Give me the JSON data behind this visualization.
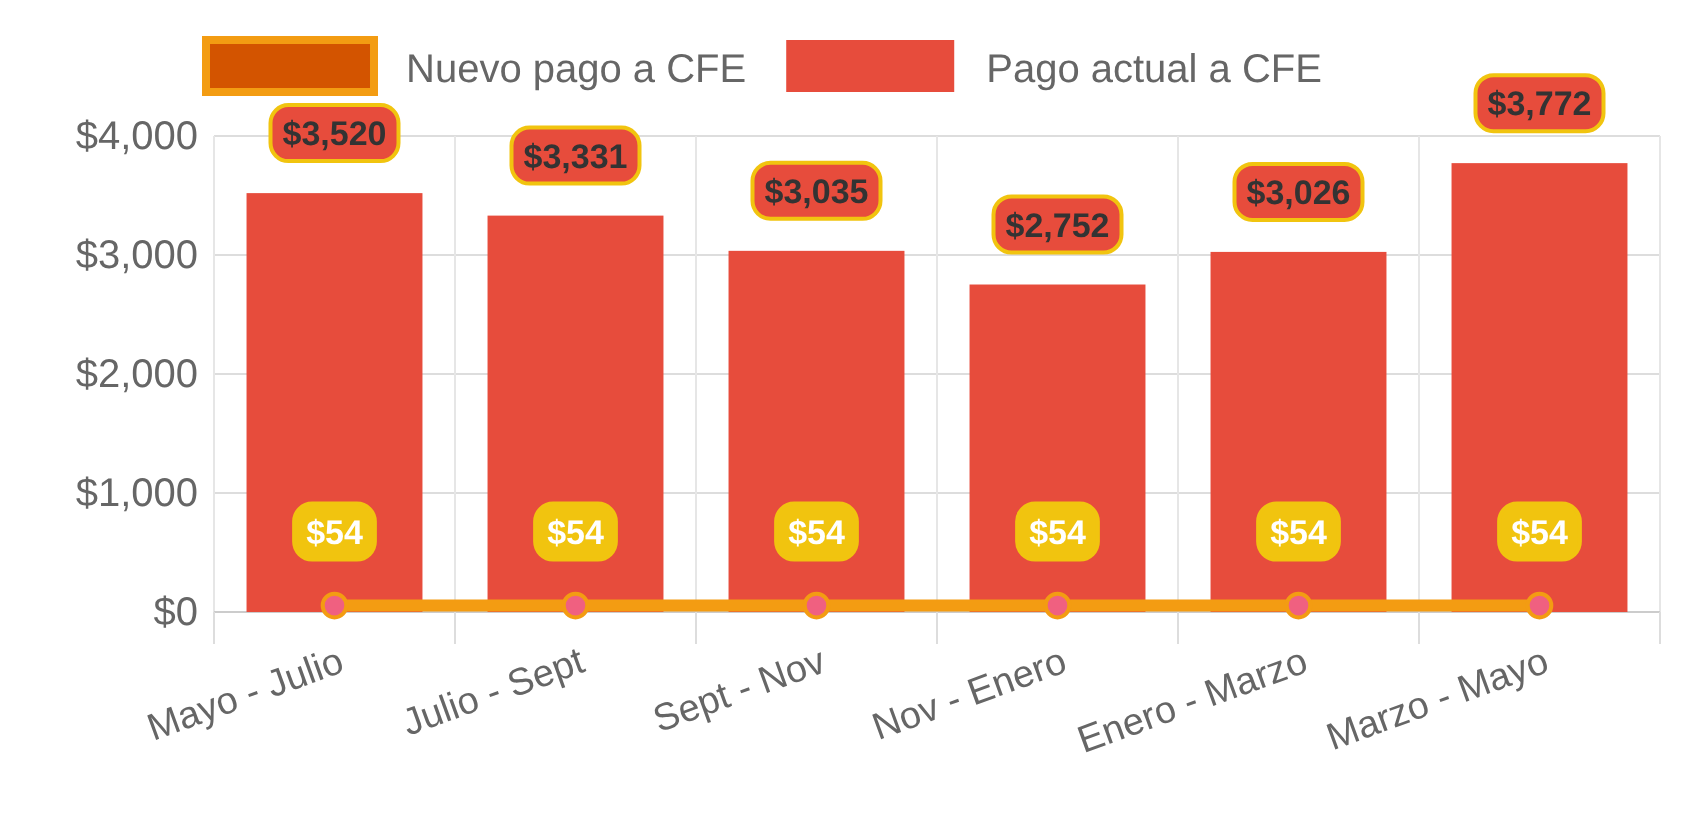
{
  "chart_data": {
    "type": "bar",
    "categories": [
      "Mayo - Julio",
      "Julio - Sept",
      "Sept - Nov",
      "Nov - Enero",
      "Enero - Marzo",
      "Marzo - Mayo"
    ],
    "series": [
      {
        "name": "Nuevo pago a CFE",
        "type": "line",
        "color": "#f39c12",
        "values": [
          54,
          54,
          54,
          54,
          54,
          54
        ],
        "value_labels": [
          "$54",
          "$54",
          "$54",
          "$54",
          "$54",
          "$54"
        ]
      },
      {
        "name": "Pago actual a CFE",
        "color": "#e74c3c",
        "values": [
          3520,
          3331,
          3035,
          2752,
          3026,
          3772
        ],
        "value_labels": [
          "$3,520",
          "$3,331",
          "$3,035",
          "$2,752",
          "$3,026",
          "$3,772"
        ]
      }
    ],
    "ylim": [
      0,
      4000
    ],
    "yticks": [
      {
        "value": 0,
        "label": "$0"
      },
      {
        "value": 1000,
        "label": "$1,000"
      },
      {
        "value": 2000,
        "label": "$2,000"
      },
      {
        "value": 3000,
        "label": "$3,000"
      },
      {
        "value": 4000,
        "label": "$4,000"
      }
    ],
    "grid": true,
    "legend": "top",
    "marker": "circle"
  }
}
